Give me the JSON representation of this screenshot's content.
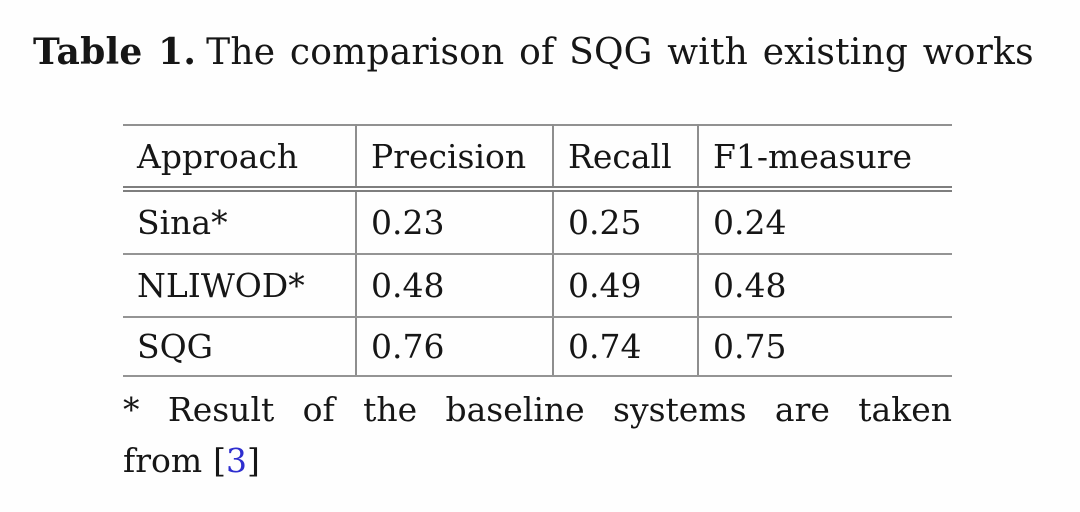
{
  "caption": {
    "label": "Table 1.",
    "text": "The comparison of SQG with existing works"
  },
  "table": {
    "columns": [
      "Approach",
      "Precision",
      "Recall",
      "F1-measure"
    ],
    "rows": [
      {
        "approach": "Sina*",
        "precision": "0.23",
        "recall": "0.25",
        "f1_measure": "0.24"
      },
      {
        "approach": "NLIWOD*",
        "precision": "0.48",
        "recall": "0.49",
        "f1_measure": "0.48"
      },
      {
        "approach": "SQG",
        "precision": "0.76",
        "recall": "0.74",
        "f1_measure": "0.75"
      }
    ]
  },
  "footnote": {
    "line1": "* Result of the baseline systems are taken",
    "line2_prefix": "from",
    "citation": {
      "open": "[",
      "number": "3",
      "close": "]"
    }
  },
  "colors": {
    "citation_blue": "#2e2ecf",
    "rule_gray": "#919191",
    "text": "#161616"
  }
}
